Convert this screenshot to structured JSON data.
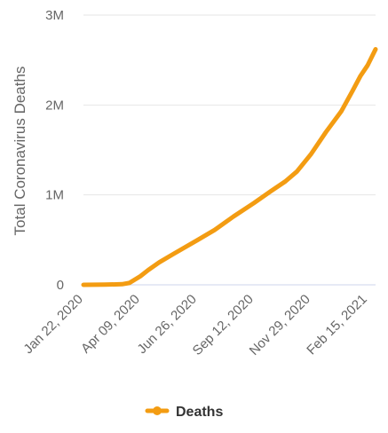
{
  "chart_data": {
    "type": "line",
    "ylabel": "Total Coronavirus Deaths",
    "xlabel": "",
    "title": "",
    "x_start": "Jan 22, 2020",
    "x_end": "Feb 26, 2021",
    "x_ticks": [
      "Jan 22, 2020",
      "Apr 09, 2020",
      "Jun 26, 2020",
      "Sep 12, 2020",
      "Nov 29, 2020",
      "Feb 15, 2021"
    ],
    "y_ticks": [
      {
        "value": 0,
        "label": "0"
      },
      {
        "value": 1000000,
        "label": "1M"
      },
      {
        "value": 2000000,
        "label": "2M"
      },
      {
        "value": 3000000,
        "label": "3M"
      }
    ],
    "ylim": [
      0,
      3000000
    ],
    "grid": true,
    "legend_position": "bottom-center",
    "series": [
      {
        "name": "Deaths",
        "color": "#f39c12",
        "points": [
          [
            "Jan 22, 2020",
            0
          ],
          [
            "Feb 20, 2020",
            2200
          ],
          [
            "Mar 15, 2020",
            6500
          ],
          [
            "Mar 25, 2020",
            21000
          ],
          [
            "Apr 09, 2020",
            95000
          ],
          [
            "Apr 20, 2020",
            165000
          ],
          [
            "May 05, 2020",
            250000
          ],
          [
            "May 25, 2020",
            345000
          ],
          [
            "Jun 26, 2020",
            495000
          ],
          [
            "Jul 20, 2020",
            610000
          ],
          [
            "Aug 15, 2020",
            760000
          ],
          [
            "Sep 12, 2020",
            910000
          ],
          [
            "Oct 05, 2020",
            1040000
          ],
          [
            "Oct 25, 2020",
            1150000
          ],
          [
            "Nov 10, 2020",
            1260000
          ],
          [
            "Nov 29, 2020",
            1450000
          ],
          [
            "Dec 20, 2020",
            1700000
          ],
          [
            "Jan 10, 2021",
            1930000
          ],
          [
            "Jan 25, 2021",
            2150000
          ],
          [
            "Feb 05, 2021",
            2320000
          ],
          [
            "Feb 15, 2021",
            2440000
          ],
          [
            "Feb 26, 2021",
            2620000
          ]
        ]
      }
    ]
  }
}
